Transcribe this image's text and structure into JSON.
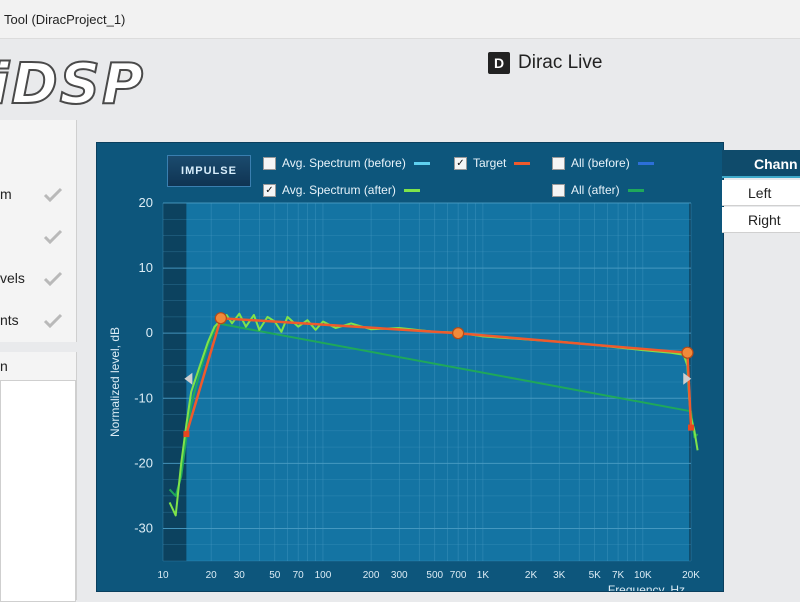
{
  "window": {
    "title": "Tool (DiracProject_1)"
  },
  "brand": {
    "logo_text": "iDSP",
    "dirac_icon": "D",
    "dirac_label": "Dirac Live"
  },
  "steps": [
    {
      "label": "m",
      "done": true
    },
    {
      "label": "",
      "done": true
    },
    {
      "label": "vels",
      "done": true
    },
    {
      "label": "nts",
      "done": true
    }
  ],
  "lower_section": {
    "label": "n"
  },
  "graph": {
    "impulse_button": "IMPULSE",
    "legend": [
      {
        "label": "Avg. Spectrum (before)",
        "checked": false,
        "color": "#5fd0ef"
      },
      {
        "label": "Avg. Spectrum (after)",
        "checked": true,
        "color": "#7fe34a"
      },
      {
        "label": "Target",
        "checked": true,
        "color": "#ef5a2c"
      },
      {
        "label": "All (before)",
        "checked": false,
        "color": "#2c6fd8"
      },
      {
        "label": "All (after)",
        "checked": false,
        "color": "#1fa85a"
      }
    ]
  },
  "chart_data": {
    "type": "line",
    "ylabel": "Normalized level, dB",
    "xlabel": "Frequency, Hz",
    "x_scale": "log",
    "xlim": [
      10,
      20000
    ],
    "ylim": [
      -35,
      20
    ],
    "y_ticks": [
      20,
      10,
      0,
      -10,
      -20,
      -30
    ],
    "x_ticks": [
      {
        "v": 10,
        "label": "10"
      },
      {
        "v": 20,
        "label": "20"
      },
      {
        "v": 30,
        "label": "30"
      },
      {
        "v": 50,
        "label": "50"
      },
      {
        "v": 70,
        "label": "70"
      },
      {
        "v": 100,
        "label": "100"
      },
      {
        "v": 200,
        "label": "200"
      },
      {
        "v": 300,
        "label": "300"
      },
      {
        "v": 500,
        "label": "500"
      },
      {
        "v": 700,
        "label": "700"
      },
      {
        "v": 1000,
        "label": "1K"
      },
      {
        "v": 2000,
        "label": "2K"
      },
      {
        "v": 3000,
        "label": "3K"
      },
      {
        "v": 5000,
        "label": "5K"
      },
      {
        "v": 7000,
        "label": "7K"
      },
      {
        "v": 10000,
        "label": "10K"
      },
      {
        "v": 20000,
        "label": "20K"
      }
    ],
    "excluded_regions": [
      [
        10,
        14
      ],
      [
        19500,
        20000
      ]
    ],
    "target": {
      "name": "Target",
      "points": [
        [
          14,
          -15.5
        ],
        [
          23,
          2.3
        ],
        [
          700,
          0
        ],
        [
          19000,
          -3
        ],
        [
          20000,
          -14.5
        ]
      ],
      "handles": [
        [
          23,
          2.3
        ],
        [
          700,
          0
        ],
        [
          19000,
          -3
        ]
      ]
    },
    "series": [
      {
        "name": "Avg. Spectrum (after)",
        "color": "#7fe34a",
        "points": [
          [
            11,
            -26
          ],
          [
            12,
            -28
          ],
          [
            13,
            -20
          ],
          [
            14,
            -14
          ],
          [
            15,
            -9
          ],
          [
            17,
            -5
          ],
          [
            19,
            -1.5
          ],
          [
            21,
            1
          ],
          [
            23,
            2
          ],
          [
            25,
            2.8
          ],
          [
            27,
            1.5
          ],
          [
            30,
            3
          ],
          [
            33,
            1
          ],
          [
            37,
            2.8
          ],
          [
            40,
            0.5
          ],
          [
            45,
            2.5
          ],
          [
            50,
            1.8
          ],
          [
            55,
            0.2
          ],
          [
            60,
            2.5
          ],
          [
            70,
            1
          ],
          [
            80,
            2
          ],
          [
            90,
            0.5
          ],
          [
            100,
            1.8
          ],
          [
            120,
            0.8
          ],
          [
            150,
            1.5
          ],
          [
            200,
            0.6
          ],
          [
            300,
            0.8
          ],
          [
            500,
            0.2
          ],
          [
            700,
            0.1
          ],
          [
            1000,
            -0.5
          ],
          [
            2000,
            -1
          ],
          [
            3000,
            -1.3
          ],
          [
            5000,
            -1.8
          ],
          [
            7000,
            -2.2
          ],
          [
            10000,
            -2.6
          ],
          [
            15000,
            -3
          ],
          [
            18000,
            -3.3
          ],
          [
            19000,
            -5
          ],
          [
            19500,
            -10
          ],
          [
            20000,
            -13
          ],
          [
            21000,
            -15
          ],
          [
            22000,
            -18
          ]
        ]
      },
      {
        "name": "All (after)",
        "color": "#1fa85a",
        "points": [
          [
            11,
            -24
          ],
          [
            12,
            -25
          ],
          [
            13,
            -22
          ],
          [
            14,
            -16
          ],
          [
            15,
            -11
          ],
          [
            17,
            -6
          ],
          [
            19,
            -2
          ],
          [
            22,
            1.5
          ],
          [
            20000,
            -12
          ],
          [
            21000,
            -16
          ],
          [
            22000,
            -15.5
          ]
        ]
      }
    ]
  },
  "channel_panel": {
    "header": "Chann",
    "items": [
      "Left",
      "Right"
    ]
  }
}
